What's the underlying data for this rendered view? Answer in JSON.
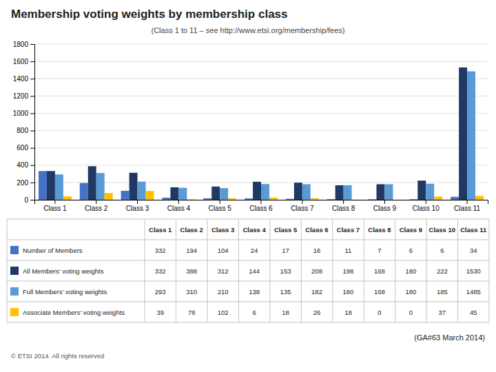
{
  "chart_data": {
    "type": "bar",
    "title": "Membership voting weights by membership class",
    "subtitle": "(Class 1 to 11 – see http://www.etsi.org/membership/fees)",
    "annotations": [
      "(GA#63 March 2014)",
      "© ETSI 2014. All rights reserved"
    ],
    "categories": [
      "Class 1",
      "Class 2",
      "Class 3",
      "Class 4",
      "Class 5",
      "Class 6",
      "Class 7",
      "Class 8",
      "Class 9",
      "Class 10",
      "Class 11"
    ],
    "series": [
      {
        "name": "Number of Members",
        "color": "#4472C4",
        "values": [
          332,
          194,
          104,
          24,
          17,
          16,
          11,
          7,
          6,
          6,
          34
        ]
      },
      {
        "name": "All Members' voting weights",
        "color": "#1F3864",
        "values": [
          332,
          388,
          312,
          144,
          153,
          208,
          198,
          168,
          180,
          222,
          1530
        ]
      },
      {
        "name": "Full Members' voting weights",
        "color": "#5B9BD5",
        "values": [
          293,
          310,
          210,
          138,
          135,
          182,
          180,
          168,
          180,
          185,
          1485
        ]
      },
      {
        "name": "Associate Members' voting weights",
        "color": "#FFC000",
        "values": [
          39,
          78,
          102,
          6,
          18,
          26,
          18,
          0,
          0,
          37,
          45
        ]
      }
    ],
    "ylim": [
      0,
      1800
    ],
    "yticks": [
      0,
      200,
      400,
      600,
      800,
      1000,
      1200,
      1400,
      1600,
      1800
    ],
    "grid": true,
    "legend": "bottom"
  }
}
